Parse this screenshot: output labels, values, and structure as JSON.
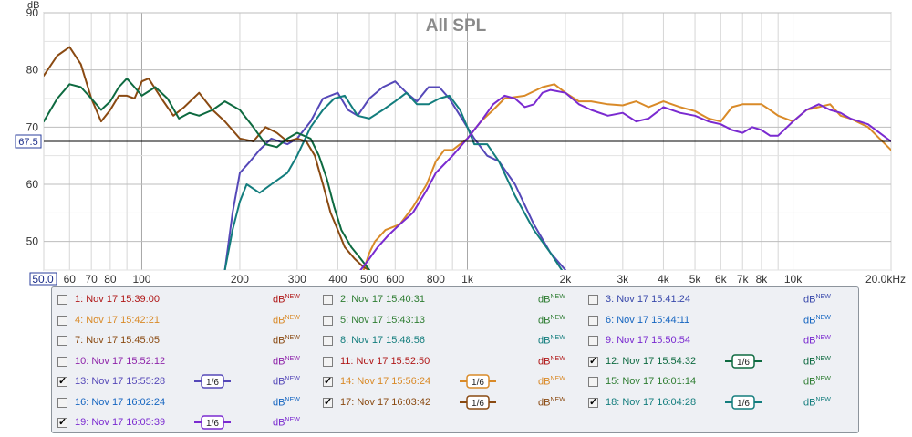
{
  "chart_data": {
    "type": "line",
    "title": "All SPL",
    "ylabel": "dB",
    "yunit_label": "dB",
    "xunit_suffix": "kHz",
    "x_scale": "log",
    "xlim": [
      50,
      20000
    ],
    "ylim": [
      45,
      90
    ],
    "y_ticks": [
      "50",
      "60",
      "70",
      "80",
      "90"
    ],
    "y_tick_values": [
      50,
      60,
      70,
      80,
      90
    ],
    "x_ticks": [
      {
        "v": 50,
        "label": "50.0"
      },
      {
        "v": 60,
        "label": "60"
      },
      {
        "v": 70,
        "label": "70"
      },
      {
        "v": 80,
        "label": "80"
      },
      {
        "v": 100,
        "label": "100"
      },
      {
        "v": 200,
        "label": "200"
      },
      {
        "v": 300,
        "label": "300"
      },
      {
        "v": 400,
        "label": "400"
      },
      {
        "v": 500,
        "label": "500"
      },
      {
        "v": 600,
        "label": "600"
      },
      {
        "v": 800,
        "label": "800"
      },
      {
        "v": 1000,
        "label": "1k"
      },
      {
        "v": 2000,
        "label": "2k"
      },
      {
        "v": 3000,
        "label": "3k"
      },
      {
        "v": 4000,
        "label": "4k"
      },
      {
        "v": 5000,
        "label": "5k"
      },
      {
        "v": 6000,
        "label": "6k"
      },
      {
        "v": 7000,
        "label": "7k"
      },
      {
        "v": 8000,
        "label": "8k"
      },
      {
        "v": 10000,
        "label": "10k"
      },
      {
        "v": 20000,
        "label": "20.0kHz"
      }
    ],
    "reference_line": {
      "value": 67.5,
      "label": "67.5"
    },
    "grid": true,
    "series": [
      {
        "name": "13: Nov 17 15:55:28",
        "color": "#5548b8",
        "points": [
          [
            180,
            45
          ],
          [
            190,
            55
          ],
          [
            200,
            62
          ],
          [
            215,
            64
          ],
          [
            230,
            66
          ],
          [
            250,
            68
          ],
          [
            280,
            67
          ],
          [
            300,
            68
          ],
          [
            330,
            71
          ],
          [
            360,
            75
          ],
          [
            400,
            76
          ],
          [
            430,
            73
          ],
          [
            460,
            72
          ],
          [
            500,
            75
          ],
          [
            550,
            77
          ],
          [
            600,
            78
          ],
          [
            650,
            76
          ],
          [
            700,
            74.5
          ],
          [
            760,
            77
          ],
          [
            820,
            77
          ],
          [
            880,
            75
          ],
          [
            950,
            72
          ],
          [
            1050,
            68
          ],
          [
            1150,
            65
          ],
          [
            1250,
            64
          ],
          [
            1400,
            60
          ],
          [
            1600,
            53
          ],
          [
            1800,
            48
          ],
          [
            2000,
            45
          ]
        ]
      },
      {
        "name": "14: Nov 17 15:56:24",
        "color": "#d98a28",
        "points": [
          [
            480,
            45
          ],
          [
            500,
            48
          ],
          [
            520,
            50
          ],
          [
            560,
            52
          ],
          [
            620,
            53
          ],
          [
            680,
            56
          ],
          [
            750,
            60
          ],
          [
            800,
            64
          ],
          [
            850,
            66
          ],
          [
            900,
            66
          ],
          [
            950,
            67
          ],
          [
            1000,
            68
          ],
          [
            1100,
            71
          ],
          [
            1200,
            73
          ],
          [
            1300,
            75
          ],
          [
            1500,
            75.5
          ],
          [
            1700,
            77
          ],
          [
            1850,
            77.5
          ],
          [
            2000,
            76
          ],
          [
            2200,
            74.5
          ],
          [
            2400,
            74.5
          ],
          [
            2700,
            74
          ],
          [
            3000,
            73.8
          ],
          [
            3300,
            74.5
          ],
          [
            3600,
            73.5
          ],
          [
            4000,
            74.5
          ],
          [
            4500,
            73.5
          ],
          [
            5000,
            72.8
          ],
          [
            5500,
            71.5
          ],
          [
            6000,
            71
          ],
          [
            6500,
            73.5
          ],
          [
            7000,
            74
          ],
          [
            7500,
            74
          ],
          [
            8000,
            74
          ],
          [
            8500,
            73
          ],
          [
            9000,
            72
          ],
          [
            10000,
            71
          ],
          [
            11000,
            73
          ],
          [
            12000,
            73.5
          ],
          [
            13000,
            74
          ],
          [
            14000,
            72
          ],
          [
            15000,
            71.5
          ],
          [
            17000,
            70
          ],
          [
            20000,
            66
          ]
        ]
      },
      {
        "name": "17: Nov 17 16:03:42",
        "color": "#8a4a12",
        "points": [
          [
            50,
            79
          ],
          [
            55,
            82.5
          ],
          [
            60,
            84
          ],
          [
            65,
            81
          ],
          [
            70,
            75
          ],
          [
            75,
            71
          ],
          [
            80,
            73
          ],
          [
            85,
            75.5
          ],
          [
            90,
            75.5
          ],
          [
            95,
            75
          ],
          [
            100,
            78
          ],
          [
            105,
            78.5
          ],
          [
            115,
            75
          ],
          [
            125,
            72
          ],
          [
            135,
            73.5
          ],
          [
            150,
            76
          ],
          [
            165,
            73
          ],
          [
            180,
            71
          ],
          [
            200,
            68
          ],
          [
            220,
            67.5
          ],
          [
            240,
            70
          ],
          [
            260,
            69
          ],
          [
            280,
            67.5
          ],
          [
            300,
            68
          ],
          [
            320,
            67.5
          ],
          [
            340,
            65
          ],
          [
            360,
            60
          ],
          [
            380,
            55
          ],
          [
            400,
            52
          ],
          [
            420,
            49
          ],
          [
            450,
            47
          ],
          [
            480,
            45.5
          ],
          [
            500,
            45
          ]
        ]
      },
      {
        "name": "12: Nov 17 15:54:32",
        "color": "#0e6a40",
        "points": [
          [
            50,
            71
          ],
          [
            55,
            75
          ],
          [
            60,
            77.5
          ],
          [
            65,
            77
          ],
          [
            70,
            75
          ],
          [
            75,
            73
          ],
          [
            80,
            74.5
          ],
          [
            85,
            77
          ],
          [
            90,
            78.5
          ],
          [
            95,
            77
          ],
          [
            100,
            75.5
          ],
          [
            110,
            77
          ],
          [
            120,
            75
          ],
          [
            130,
            71.5
          ],
          [
            140,
            72.5
          ],
          [
            150,
            72
          ],
          [
            165,
            73
          ],
          [
            180,
            74.5
          ],
          [
            200,
            73
          ],
          [
            220,
            70
          ],
          [
            240,
            67
          ],
          [
            260,
            66.5
          ],
          [
            280,
            68
          ],
          [
            300,
            69
          ],
          [
            330,
            68
          ],
          [
            350,
            65
          ],
          [
            370,
            61
          ],
          [
            390,
            56
          ],
          [
            410,
            52
          ],
          [
            440,
            49
          ],
          [
            470,
            47
          ],
          [
            500,
            45
          ]
        ]
      },
      {
        "name": "18: Nov 17 16:04:28",
        "color": "#137d7d",
        "points": [
          [
            180,
            45
          ],
          [
            190,
            52
          ],
          [
            200,
            57
          ],
          [
            210,
            60
          ],
          [
            230,
            58.5
          ],
          [
            250,
            60
          ],
          [
            280,
            62
          ],
          [
            300,
            65
          ],
          [
            330,
            70
          ],
          [
            360,
            73
          ],
          [
            390,
            75
          ],
          [
            420,
            75.5
          ],
          [
            460,
            72
          ],
          [
            500,
            71.5
          ],
          [
            550,
            73
          ],
          [
            600,
            74.5
          ],
          [
            650,
            76
          ],
          [
            700,
            74
          ],
          [
            760,
            74
          ],
          [
            820,
            75
          ],
          [
            880,
            75.5
          ],
          [
            950,
            73
          ],
          [
            1000,
            70
          ],
          [
            1050,
            67
          ],
          [
            1150,
            67
          ],
          [
            1250,
            64
          ],
          [
            1400,
            58
          ],
          [
            1600,
            52
          ],
          [
            1800,
            48
          ],
          [
            1950,
            45
          ]
        ]
      },
      {
        "name": "19: Nov 17 16:05:39",
        "color": "#7a2ad0",
        "points": [
          [
            470,
            45
          ],
          [
            500,
            47
          ],
          [
            530,
            49
          ],
          [
            570,
            51
          ],
          [
            620,
            53
          ],
          [
            680,
            55
          ],
          [
            750,
            59
          ],
          [
            800,
            62
          ],
          [
            900,
            65
          ],
          [
            1000,
            68
          ],
          [
            1100,
            71
          ],
          [
            1200,
            74
          ],
          [
            1300,
            75.5
          ],
          [
            1400,
            75
          ],
          [
            1500,
            73.5
          ],
          [
            1600,
            74
          ],
          [
            1700,
            76
          ],
          [
            1800,
            76.5
          ],
          [
            2000,
            76
          ],
          [
            2200,
            74
          ],
          [
            2400,
            73
          ],
          [
            2700,
            72
          ],
          [
            3000,
            72.5
          ],
          [
            3300,
            71
          ],
          [
            3600,
            71.5
          ],
          [
            4000,
            73.5
          ],
          [
            4500,
            72.5
          ],
          [
            5000,
            72
          ],
          [
            5500,
            71
          ],
          [
            6000,
            70.5
          ],
          [
            6500,
            69.5
          ],
          [
            7000,
            69
          ],
          [
            7500,
            70
          ],
          [
            8000,
            69.5
          ],
          [
            8500,
            68.5
          ],
          [
            9000,
            68.5
          ],
          [
            10000,
            71
          ],
          [
            11000,
            73
          ],
          [
            12000,
            74
          ],
          [
            13000,
            73
          ],
          [
            14000,
            72.5
          ],
          [
            15000,
            71.5
          ],
          [
            17000,
            70.5
          ],
          [
            20000,
            67.5
          ]
        ]
      }
    ]
  },
  "legend": {
    "db_label": "dB",
    "db_sup": "NEW",
    "smooth_label": "1/6",
    "items": [
      {
        "id": 1,
        "label": "1: Nov 17 15:39:00",
        "color": "#b01818",
        "checked": false
      },
      {
        "id": 2,
        "label": "2: Nov 17 15:40:31",
        "color": "#2e7d32",
        "checked": false
      },
      {
        "id": 3,
        "label": "3: Nov 17 15:41:24",
        "color": "#3949ab",
        "checked": false
      },
      {
        "id": 4,
        "label": "4: Nov 17 15:42:21",
        "color": "#d98a28",
        "checked": false
      },
      {
        "id": 5,
        "label": "5: Nov 17 15:43:13",
        "color": "#2e7d32",
        "checked": false
      },
      {
        "id": 6,
        "label": "6: Nov 17 15:44:11",
        "color": "#1565c0",
        "checked": false
      },
      {
        "id": 7,
        "label": "7: Nov 17 15:45:05",
        "color": "#8a4a12",
        "checked": false
      },
      {
        "id": 8,
        "label": "8: Nov 17 15:48:56",
        "color": "#137d7d",
        "checked": false
      },
      {
        "id": 9,
        "label": "9: Nov 17 15:50:54",
        "color": "#7a2ad0",
        "checked": false
      },
      {
        "id": 10,
        "label": "10: Nov 17 15:52:12",
        "color": "#8e24aa",
        "checked": false
      },
      {
        "id": 11,
        "label": "11: Nov 17 15:52:50",
        "color": "#b01818",
        "checked": false
      },
      {
        "id": 12,
        "label": "12: Nov 17 15:54:32",
        "color": "#0e6a40",
        "checked": true
      },
      {
        "id": 13,
        "label": "13: Nov 17 15:55:28",
        "color": "#5548b8",
        "checked": true
      },
      {
        "id": 14,
        "label": "14: Nov 17 15:56:24",
        "color": "#d98a28",
        "checked": true
      },
      {
        "id": 15,
        "label": "15: Nov 17 16:01:14",
        "color": "#2e7d32",
        "checked": false
      },
      {
        "id": 16,
        "label": "16: Nov 17 16:02:24",
        "color": "#1565c0",
        "checked": false
      },
      {
        "id": 17,
        "label": "17: Nov 17 16:03:42",
        "color": "#8a4a12",
        "checked": true
      },
      {
        "id": 18,
        "label": "18: Nov 17 16:04:28",
        "color": "#137d7d",
        "checked": true
      },
      {
        "id": 19,
        "label": "19: Nov 17 16:05:39",
        "color": "#7a2ad0",
        "checked": true
      }
    ]
  }
}
